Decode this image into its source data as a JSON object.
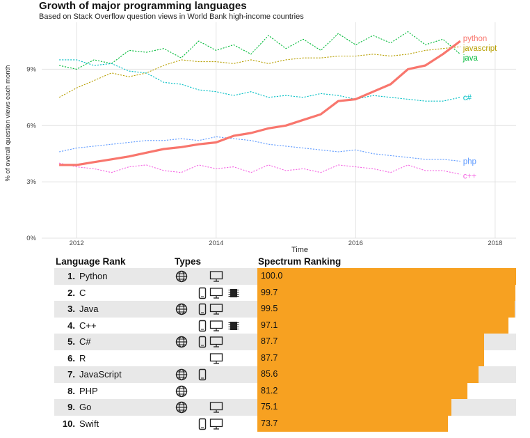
{
  "chart_data": [
    {
      "type": "line",
      "title": "Growth of major programming languages",
      "subtitle": "Based on Stack Overflow question views in World Bank high-income countries",
      "xlabel": "Time",
      "ylabel": "% of overall question views each month",
      "xlim": [
        2011.5,
        2018.3
      ],
      "ylim": [
        0,
        11.5
      ],
      "x_ticks": [
        2012,
        2014,
        2016,
        2018
      ],
      "x_tick_labels": [
        "2012",
        "2014",
        "2016",
        "2018"
      ],
      "y_ticks": [
        0,
        3,
        6,
        9
      ],
      "y_tick_labels": [
        "0%",
        "3%",
        "6%",
        "9%"
      ],
      "grid": true,
      "legend": "direct labels at line ends",
      "series": [
        {
          "name": "python",
          "color": "#f8766d",
          "style": "solid",
          "x": [
            2011.75,
            2012.0,
            2012.25,
            2012.5,
            2012.75,
            2013.0,
            2013.25,
            2013.5,
            2013.75,
            2014.0,
            2014.25,
            2014.5,
            2014.75,
            2015.0,
            2015.25,
            2015.5,
            2015.75,
            2016.0,
            2016.25,
            2016.5,
            2016.75,
            2017.0,
            2017.25,
            2017.5
          ],
          "y": [
            3.9,
            3.9,
            4.05,
            4.2,
            4.35,
            4.55,
            4.75,
            4.85,
            5.0,
            5.1,
            5.45,
            5.6,
            5.85,
            6.0,
            6.3,
            6.6,
            7.3,
            7.4,
            7.8,
            8.2,
            9.0,
            9.2,
            9.8,
            10.5
          ]
        },
        {
          "name": "javascript",
          "color": "#b79f00",
          "style": "dotted",
          "x": [
            2011.75,
            2012.0,
            2012.25,
            2012.5,
            2012.75,
            2013.0,
            2013.25,
            2013.5,
            2013.75,
            2014.0,
            2014.25,
            2014.5,
            2014.75,
            2015.0,
            2015.25,
            2015.5,
            2015.75,
            2016.0,
            2016.25,
            2016.5,
            2016.75,
            2017.0,
            2017.25,
            2017.5
          ],
          "y": [
            7.5,
            8.0,
            8.4,
            8.8,
            8.6,
            8.8,
            9.2,
            9.5,
            9.4,
            9.4,
            9.3,
            9.5,
            9.3,
            9.5,
            9.6,
            9.6,
            9.7,
            9.7,
            9.8,
            9.7,
            9.8,
            10.0,
            10.1,
            10.2
          ]
        },
        {
          "name": "java",
          "color": "#00ba38",
          "style": "dotted",
          "x": [
            2011.75,
            2012.0,
            2012.25,
            2012.5,
            2012.75,
            2013.0,
            2013.25,
            2013.5,
            2013.75,
            2014.0,
            2014.25,
            2014.5,
            2014.75,
            2015.0,
            2015.25,
            2015.5,
            2015.75,
            2016.0,
            2016.25,
            2016.5,
            2016.75,
            2017.0,
            2017.25,
            2017.5
          ],
          "y": [
            9.2,
            9.0,
            9.5,
            9.3,
            10.0,
            9.9,
            10.1,
            9.6,
            10.5,
            10.0,
            10.3,
            9.8,
            10.8,
            10.1,
            10.6,
            10.0,
            10.9,
            10.3,
            10.8,
            10.4,
            11.0,
            10.3,
            10.6,
            9.8
          ]
        },
        {
          "name": "c#",
          "color": "#00bfc4",
          "style": "dotted",
          "x": [
            2011.75,
            2012.0,
            2012.25,
            2012.5,
            2012.75,
            2013.0,
            2013.25,
            2013.5,
            2013.75,
            2014.0,
            2014.25,
            2014.5,
            2014.75,
            2015.0,
            2015.25,
            2015.5,
            2015.75,
            2016.0,
            2016.25,
            2016.5,
            2016.75,
            2017.0,
            2017.25,
            2017.5
          ],
          "y": [
            9.5,
            9.5,
            9.2,
            9.3,
            8.9,
            8.8,
            8.3,
            8.2,
            7.9,
            7.8,
            7.6,
            7.8,
            7.5,
            7.6,
            7.5,
            7.7,
            7.6,
            7.4,
            7.6,
            7.5,
            7.4,
            7.3,
            7.3,
            7.5
          ]
        },
        {
          "name": "php",
          "color": "#619cff",
          "style": "dotted",
          "x": [
            2011.75,
            2012.0,
            2012.25,
            2012.5,
            2012.75,
            2013.0,
            2013.25,
            2013.5,
            2013.75,
            2014.0,
            2014.25,
            2014.5,
            2014.75,
            2015.0,
            2015.25,
            2015.5,
            2015.75,
            2016.0,
            2016.25,
            2016.5,
            2016.75,
            2017.0,
            2017.25,
            2017.5
          ],
          "y": [
            4.6,
            4.8,
            4.9,
            5.0,
            5.1,
            5.2,
            5.2,
            5.3,
            5.2,
            5.4,
            5.3,
            5.2,
            5.0,
            4.9,
            4.8,
            4.7,
            4.6,
            4.7,
            4.5,
            4.4,
            4.3,
            4.2,
            4.2,
            4.1
          ]
        },
        {
          "name": "c++",
          "color": "#f564e3",
          "style": "dotted",
          "x": [
            2011.75,
            2012.0,
            2012.25,
            2012.5,
            2012.75,
            2013.0,
            2013.25,
            2013.5,
            2013.75,
            2014.0,
            2014.25,
            2014.5,
            2014.75,
            2015.0,
            2015.25,
            2015.5,
            2015.75,
            2016.0,
            2016.25,
            2016.5,
            2016.75,
            2017.0,
            2017.25,
            2017.5
          ],
          "y": [
            4.0,
            3.8,
            3.7,
            3.5,
            3.8,
            3.9,
            3.6,
            3.5,
            3.9,
            3.7,
            3.8,
            3.5,
            3.9,
            3.6,
            3.7,
            3.5,
            3.9,
            3.8,
            3.7,
            3.5,
            3.9,
            3.6,
            3.6,
            3.4
          ]
        }
      ]
    },
    {
      "type": "table",
      "title": "Language Rank",
      "columns": [
        "Language Rank",
        "Types",
        "Spectrum Ranking"
      ],
      "xlim": [
        0,
        100
      ],
      "bar_color": "#f7a121",
      "rows": [
        {
          "rank": "1.",
          "name": "Python",
          "types": [
            "web-icon",
            "desktop-icon"
          ],
          "value": 100.0,
          "value_label": "100.0"
        },
        {
          "rank": "2.",
          "name": "C",
          "types": [
            "mobile-icon",
            "desktop-icon",
            "chip-icon"
          ],
          "value": 99.7,
          "value_label": "99.7"
        },
        {
          "rank": "3.",
          "name": "Java",
          "types": [
            "web-icon",
            "mobile-icon",
            "desktop-icon"
          ],
          "value": 99.5,
          "value_label": "99.5"
        },
        {
          "rank": "4.",
          "name": "C++",
          "types": [
            "mobile-icon",
            "desktop-icon",
            "chip-icon"
          ],
          "value": 97.1,
          "value_label": "97.1"
        },
        {
          "rank": "5.",
          "name": "C#",
          "types": [
            "web-icon",
            "mobile-icon",
            "desktop-icon"
          ],
          "value": 87.7,
          "value_label": "87.7"
        },
        {
          "rank": "6.",
          "name": "R",
          "types": [
            "desktop-icon"
          ],
          "value": 87.7,
          "value_label": "87.7"
        },
        {
          "rank": "7.",
          "name": "JavaScript",
          "types": [
            "web-icon",
            "mobile-icon"
          ],
          "value": 85.6,
          "value_label": "85.6"
        },
        {
          "rank": "8.",
          "name": "PHP",
          "types": [
            "web-icon"
          ],
          "value": 81.2,
          "value_label": "81.2"
        },
        {
          "rank": "9.",
          "name": "Go",
          "types": [
            "web-icon",
            "desktop-icon"
          ],
          "value": 75.1,
          "value_label": "75.1"
        },
        {
          "rank": "10.",
          "name": "Swift",
          "types": [
            "mobile-icon",
            "desktop-icon"
          ],
          "value": 73.7,
          "value_label": "73.7"
        }
      ]
    }
  ]
}
